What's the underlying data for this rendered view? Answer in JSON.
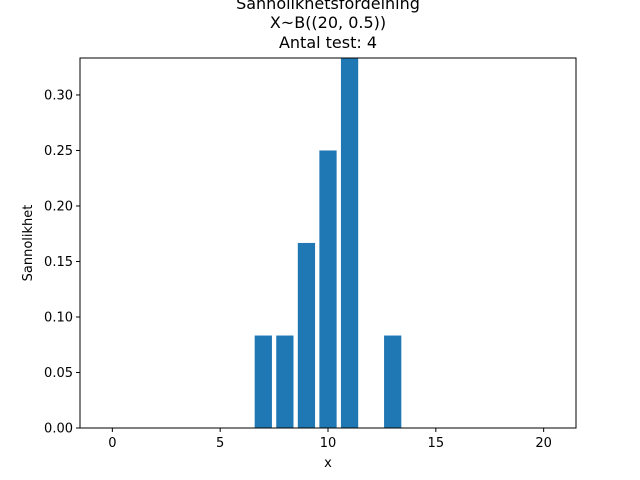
{
  "chart_data": {
    "type": "bar",
    "title_lines": [
      "Sannolikhetsfördelning",
      "X~B((20, 0.5))",
      "Antal test: 4"
    ],
    "xlabel": "x",
    "ylabel": "Sannolikhet",
    "x": [
      0,
      1,
      2,
      3,
      4,
      5,
      6,
      7,
      8,
      9,
      10,
      11,
      12,
      13,
      14,
      15,
      16,
      17,
      18,
      19,
      20
    ],
    "values": [
      0,
      0,
      0,
      0,
      0,
      0,
      0,
      0.0833,
      0.0833,
      0.1667,
      0.25,
      0.3333,
      0,
      0.0833,
      0,
      0,
      0,
      0,
      0,
      0,
      0
    ],
    "xlim": [
      -1.5,
      21.5
    ],
    "ylim": [
      0,
      0.3333
    ],
    "xticks": [
      0,
      5,
      10,
      15,
      20
    ],
    "xtick_labels": [
      "0",
      "5",
      "10",
      "15",
      "20"
    ],
    "yticks": [
      0.0,
      0.05,
      0.1,
      0.15,
      0.2,
      0.25,
      0.3
    ],
    "ytick_labels": [
      "0.00",
      "0.05",
      "0.10",
      "0.15",
      "0.20",
      "0.25",
      "0.30"
    ],
    "bar_color": "#1f77b4",
    "grid": false,
    "legend": "none"
  }
}
